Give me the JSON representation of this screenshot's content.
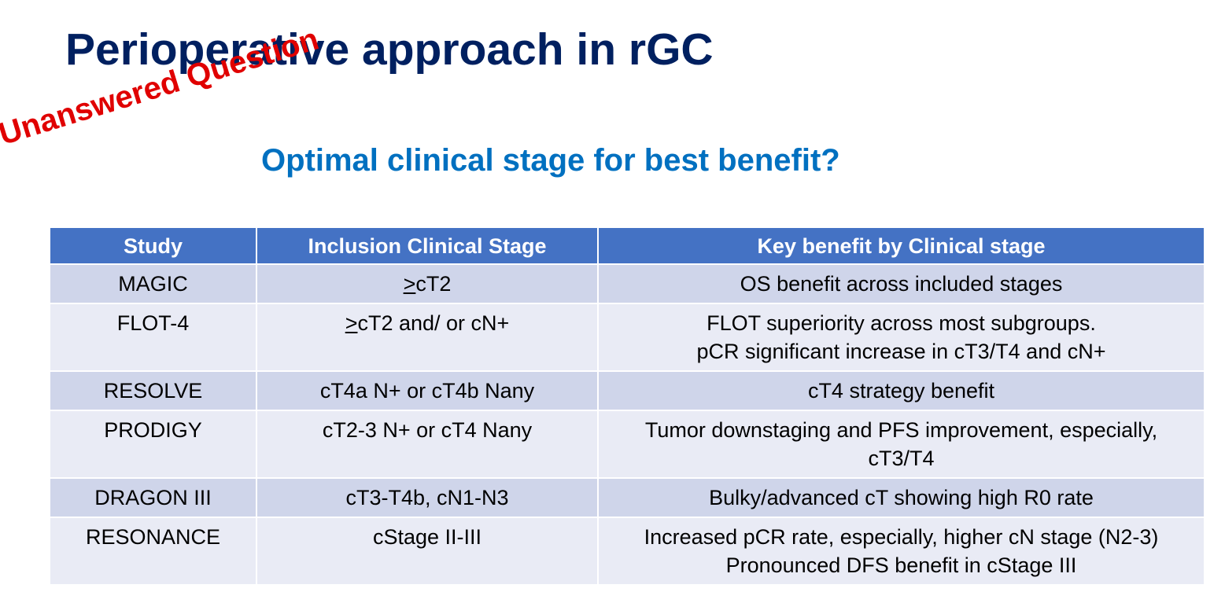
{
  "header": {
    "title": "Perioperative approach in rGC",
    "stamp": "Unanswered Question",
    "subtitle": "Optimal clinical stage for best benefit?"
  },
  "table": {
    "columns": [
      "Study",
      "Inclusion Clinical Stage",
      "Key benefit by Clinical stage"
    ],
    "rows": [
      [
        "MAGIC",
        ">cT2",
        [
          "OS benefit across included stages"
        ]
      ],
      [
        "FLOT-4",
        ">cT2 and/ or cN+",
        [
          "FLOT superiority across most subgroups.",
          "pCR significant increase in cT3/T4 and cN+"
        ]
      ],
      [
        "RESOLVE",
        "cT4a N+ or cT4b Nany",
        [
          "cT4 strategy benefit"
        ]
      ],
      [
        "PRODIGY",
        "cT2-3 N+ or cT4 Nany",
        [
          "Tumor downstaging and PFS improvement, especially,",
          "cT3/T4"
        ]
      ],
      [
        "DRAGON III",
        "cT3-T4b, cN1-N3",
        [
          "Bulky/advanced cT showing high R0 rate"
        ]
      ],
      [
        "RESONANCE",
        "cStage II-III",
        [
          "Increased pCR rate, especially, higher cN stage (N2-3)",
          "Pronounced DFS benefit in cStage III"
        ]
      ]
    ]
  }
}
